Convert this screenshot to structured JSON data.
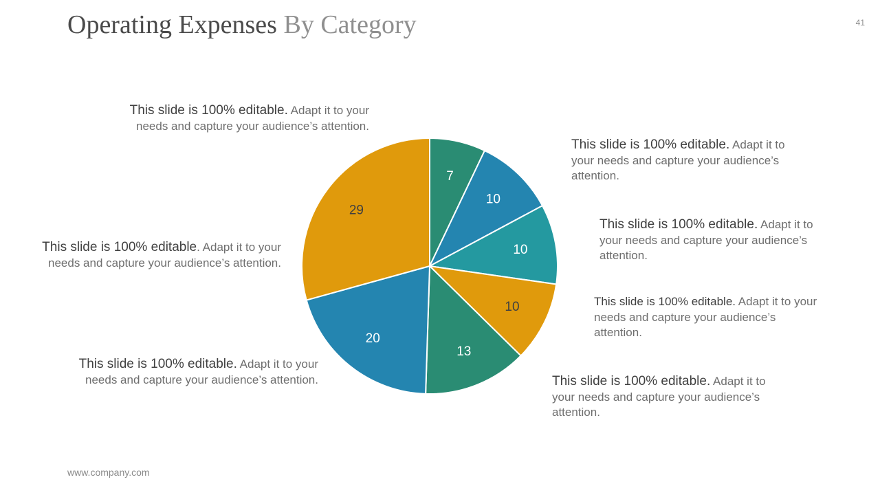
{
  "slide": {
    "title_main": "Operating Expenses",
    "title_accent": " By Category",
    "page_number": "41",
    "footer": "www.company.com"
  },
  "callouts": [
    {
      "lead": "This slide is 100% editable.",
      "rest": " Adapt it to your needs and capture your audience’s attention."
    },
    {
      "lead": "This slide is 100% editable",
      "rest": ". Adapt it to your needs and capture your audience’s attention."
    },
    {
      "lead": "This slide is 100% editable.",
      "rest": " Adapt it to your needs and capture your audience’s attention."
    },
    {
      "lead": "This slide is 100% editable.",
      "rest": " Adapt it to your needs and capture your audience’s attention."
    },
    {
      "lead": "This slide is 100% editable.",
      "rest": " Adapt it to your needs and capture your audience’s attention."
    },
    {
      "lead": "This slide is 100% editable.",
      "rest": " Adapt it to your needs and capture your audience’s attention."
    },
    {
      "lead": "This slide is 100% editable.",
      "rest": " Adapt it to your needs and capture your audience’s attention."
    }
  ],
  "chart_data": {
    "type": "pie",
    "values": [
      7,
      10,
      10,
      10,
      13,
      20,
      29
    ],
    "data_labels": [
      "7",
      "10",
      "10",
      "10",
      "13",
      "20",
      "29"
    ],
    "colors": [
      "#2a8c73",
      "#2485b0",
      "#2499a0",
      "#e09a0c",
      "#2a8c73",
      "#2485b0",
      "#e09a0c"
    ],
    "start_angle_deg": 0,
    "direction": "clockwise",
    "legend": "none"
  }
}
